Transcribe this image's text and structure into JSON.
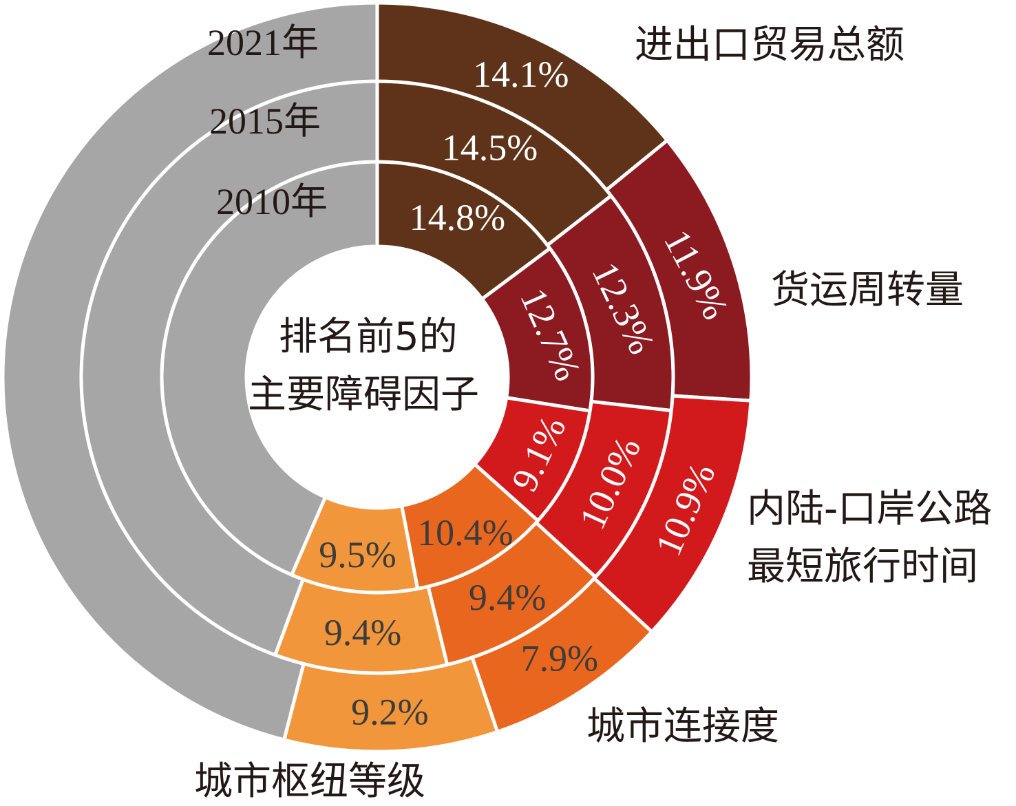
{
  "chart_data": {
    "type": "pie",
    "subtype": "multi-ring-donut",
    "center_label": [
      "排名前5的",
      "主要障碍因子"
    ],
    "categories": [
      "进出口贸易总额",
      "货运周转量",
      "内陆-口岸公路最短旅行时间",
      "城市连接度",
      "城市枢纽等级"
    ],
    "category_labels": [
      [
        "进出口贸易总额"
      ],
      [
        "货运周转量"
      ],
      [
        "内陆-口岸公路",
        "最短旅行时间"
      ],
      [
        "城市连接度"
      ],
      [
        "城市枢纽等级"
      ]
    ],
    "colors": [
      "#5e3319",
      "#8c1a21",
      "#d21a1c",
      "#e9661e",
      "#f1963a"
    ],
    "label_colors": [
      "#ffffff",
      "#ffffff",
      "#ffffff",
      "#3c3c3c",
      "#3c3c3c"
    ],
    "remainder_color": "#a6a6a6",
    "series": [
      {
        "name": "2010年",
        "values": [
          14.8,
          12.7,
          9.1,
          10.4,
          9.5
        ],
        "labels": [
          "14.8%",
          "12.7%",
          "9.1%",
          "10.4%",
          "9.5%"
        ]
      },
      {
        "name": "2015年",
        "values": [
          14.5,
          12.3,
          10.0,
          9.4,
          9.4
        ],
        "labels": [
          "14.5%",
          "12.3%",
          "10.0%",
          "9.4%",
          "9.4%"
        ]
      },
      {
        "name": "2021年",
        "values": [
          14.1,
          11.9,
          10.9,
          7.9,
          9.2
        ],
        "labels": [
          "14.1%",
          "11.9%",
          "10.9%",
          "7.9%",
          "9.2%"
        ]
      }
    ],
    "unit": "%"
  }
}
